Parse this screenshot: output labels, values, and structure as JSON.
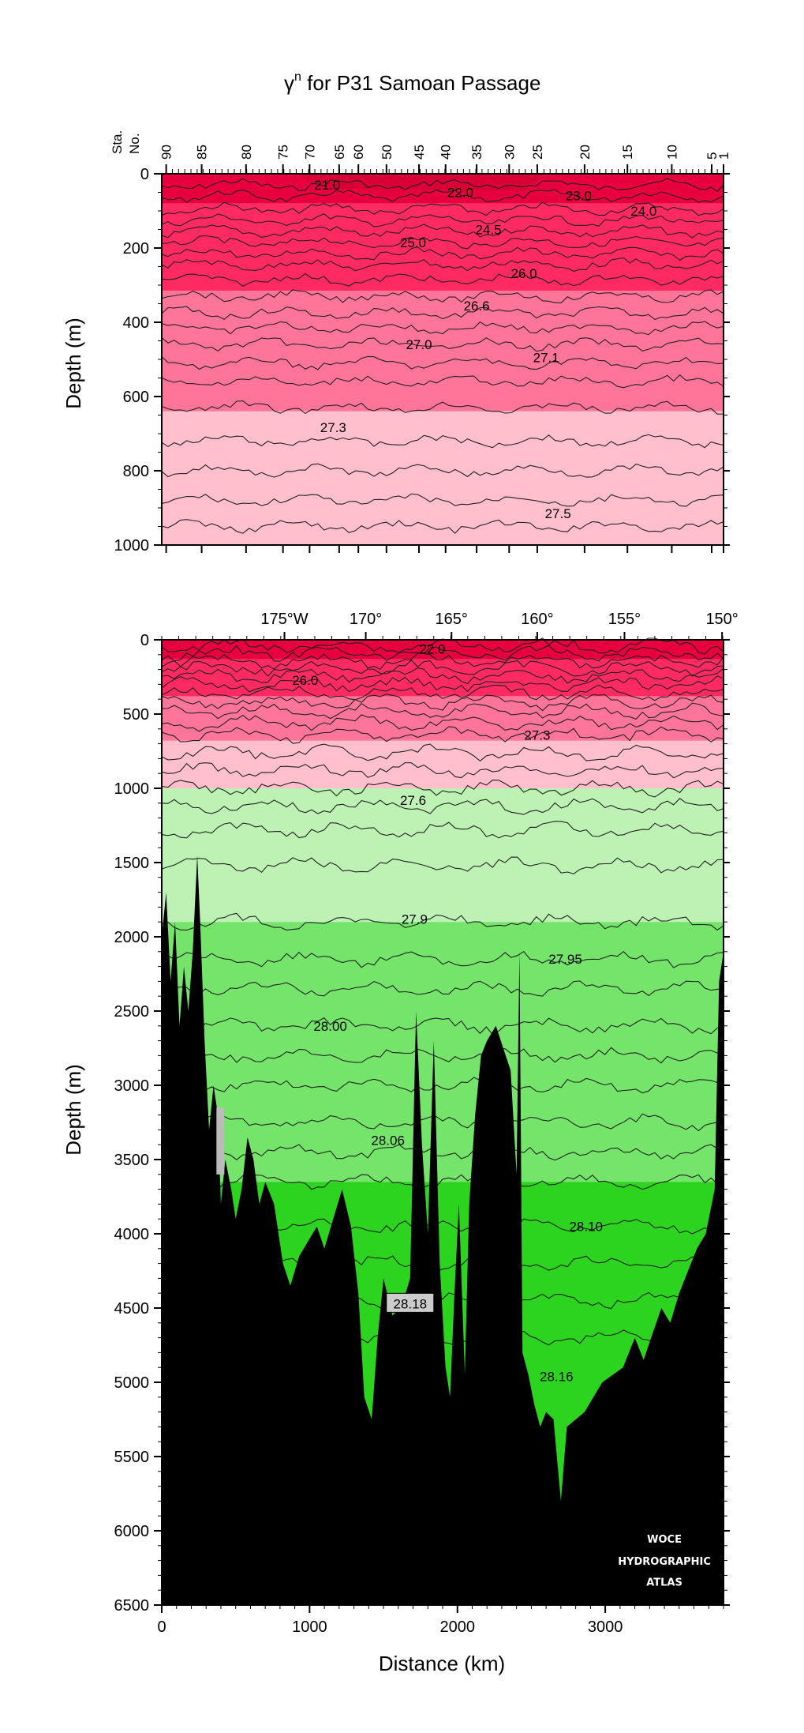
{
  "chart_data": [
    {
      "type": "contour-section",
      "title": "γ",
      "title_superscript": "n",
      "title_rest": " for P31 Samoan Passage",
      "ylabel": "Depth (m)",
      "top_axis_title": "Sta.",
      "top_axis_title2": "No.",
      "ylim": [
        1000,
        0
      ],
      "xlim": [
        0,
        3800
      ],
      "y_ticks": [
        0,
        200,
        400,
        600,
        800,
        1000
      ],
      "y_tick_labels": [
        "0",
        "200",
        "400",
        "600",
        "800",
        "1000"
      ],
      "stations": [
        {
          "label": "90",
          "km": 30
        },
        {
          "label": "85",
          "km": 270
        },
        {
          "label": "80",
          "km": 570
        },
        {
          "label": "75",
          "km": 820
        },
        {
          "label": "70",
          "km": 1000
        },
        {
          "label": "65",
          "km": 1200
        },
        {
          "label": "60",
          "km": 1330
        },
        {
          "label": "50",
          "km": 1520
        },
        {
          "label": "45",
          "km": 1740
        },
        {
          "label": "40",
          "km": 1920
        },
        {
          "label": "35",
          "km": 2130
        },
        {
          "label": "30",
          "km": 2350
        },
        {
          "label": "25",
          "km": 2540
        },
        {
          "label": "20",
          "km": 2860
        },
        {
          "label": "15",
          "km": 3150
        },
        {
          "label": "10",
          "km": 3450
        },
        {
          "label": "5",
          "km": 3720
        },
        {
          "label": "1",
          "km": 3800
        }
      ],
      "contour_labels": [
        {
          "text": "21.0",
          "km": 1120,
          "depth": 30
        },
        {
          "text": "22.0",
          "km": 2020,
          "depth": 50
        },
        {
          "text": "23.0",
          "km": 2820,
          "depth": 58
        },
        {
          "text": "24.0",
          "km": 3260,
          "depth": 100
        },
        {
          "text": "24.5",
          "km": 2210,
          "depth": 150
        },
        {
          "text": "25.0",
          "km": 1700,
          "depth": 185
        },
        {
          "text": "26.0",
          "km": 2450,
          "depth": 268
        },
        {
          "text": "26.6",
          "km": 2130,
          "depth": 355
        },
        {
          "text": "27.0",
          "km": 1740,
          "depth": 460
        },
        {
          "text": "27.1",
          "km": 2600,
          "depth": 495
        },
        {
          "text": "27.3",
          "km": 1160,
          "depth": 683
        },
        {
          "text": "27.5",
          "km": 2680,
          "depth": 915
        }
      ],
      "color_bands": [
        {
          "from": 0,
          "to": 80,
          "color": "#e8003e"
        },
        {
          "from": 80,
          "to": 315,
          "color": "#ff2a62"
        },
        {
          "from": 315,
          "to": 640,
          "color": "#ff7599"
        },
        {
          "from": 640,
          "to": 1000,
          "color": "#ffbfcc"
        }
      ]
    },
    {
      "type": "contour-section",
      "ylabel": "Depth (m)",
      "xlabel": "Distance (km)",
      "ylim": [
        6500,
        0
      ],
      "xlim": [
        0,
        3800
      ],
      "x_ticks": [
        0,
        1000,
        2000,
        3000
      ],
      "x_tick_labels": [
        "0",
        "1000",
        "2000",
        "3000"
      ],
      "y_ticks": [
        0,
        500,
        1000,
        1500,
        2000,
        2500,
        3000,
        3500,
        4000,
        4500,
        5000,
        5500,
        6000,
        6500
      ],
      "y_tick_labels": [
        "0",
        "500",
        "1000",
        "1500",
        "2000",
        "2500",
        "3000",
        "3500",
        "4000",
        "4500",
        "5000",
        "5500",
        "6000",
        "6500"
      ],
      "longitudes": [
        {
          "label": "175°W",
          "km": 830
        },
        {
          "label": "170°",
          "km": 1380
        },
        {
          "label": "165°",
          "km": 1960
        },
        {
          "label": "160°",
          "km": 2540
        },
        {
          "label": "155°",
          "km": 3130
        },
        {
          "label": "150°",
          "km": 3790
        }
      ],
      "contour_labels": [
        {
          "text": "22.0",
          "km": 1830,
          "depth": 60
        },
        {
          "text": "26.0",
          "km": 970,
          "depth": 270
        },
        {
          "text": "27.3",
          "km": 2540,
          "depth": 640
        },
        {
          "text": "27.6",
          "km": 1700,
          "depth": 1080
        },
        {
          "text": "27.9",
          "km": 1710,
          "depth": 1880
        },
        {
          "text": "27.95",
          "km": 2730,
          "depth": 2150
        },
        {
          "text": "28.00",
          "km": 1140,
          "depth": 2600
        },
        {
          "text": "28.06",
          "km": 1530,
          "depth": 3370
        },
        {
          "text": "28.10",
          "km": 2870,
          "depth": 3950
        },
        {
          "text": "28.18",
          "km": 1680,
          "depth": 4470
        },
        {
          "text": "28.16",
          "km": 2670,
          "depth": 4960
        }
      ],
      "color_bands": [
        {
          "from": 0,
          "to": 130,
          "color": "#e8003e"
        },
        {
          "from": 130,
          "to": 380,
          "color": "#ff2a62"
        },
        {
          "from": 380,
          "to": 680,
          "color": "#ff7599"
        },
        {
          "from": 680,
          "to": 1000,
          "color": "#ffbfcc"
        },
        {
          "from": 1000,
          "to": 1900,
          "color": "#bdf2b4"
        },
        {
          "from": 1900,
          "to": 3650,
          "color": "#74e56a"
        },
        {
          "from": 3650,
          "to": 6500,
          "color": "#2dd41f"
        }
      ],
      "watermark": [
        "WOCE",
        "HYDROGRAPHIC",
        "ATLAS"
      ]
    }
  ]
}
